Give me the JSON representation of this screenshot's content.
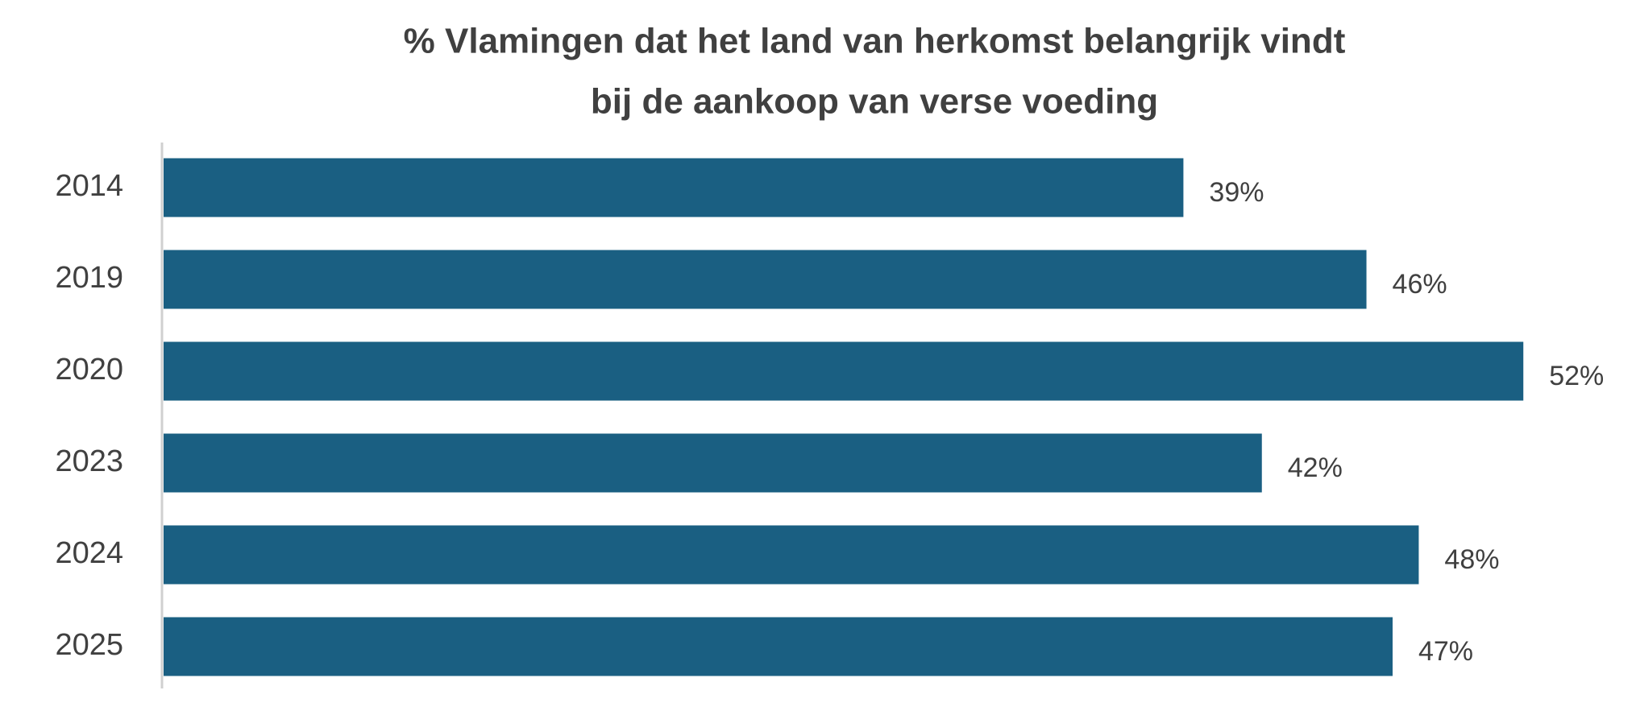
{
  "chart_data": {
    "type": "bar",
    "orientation": "horizontal",
    "title": [
      "% Vlamingen dat het land van herkomst belangrijk vindt",
      "bij de aankoop van verse voeding"
    ],
    "categories": [
      "2014",
      "2019",
      "2020",
      "2023",
      "2024",
      "2025"
    ],
    "values": [
      39,
      46,
      52,
      42,
      48,
      47
    ],
    "value_labels": [
      "39%",
      "46%",
      "52%",
      "42%",
      "48%",
      "47%"
    ],
    "color": "#1a5f82",
    "xlim": [
      0,
      56
    ]
  }
}
